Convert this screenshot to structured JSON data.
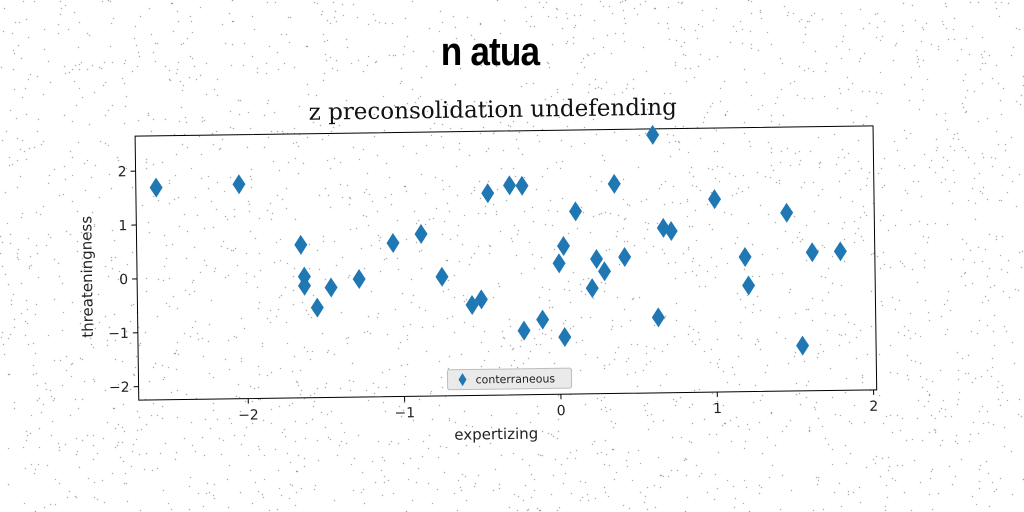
{
  "suptitle": "n atua",
  "chart_data": {
    "type": "scatter",
    "title": "z preconsolidation undefending",
    "xlabel": "expertizing",
    "ylabel": "threateningness",
    "xlim": [
      -2.7,
      2.02
    ],
    "ylim": [
      -2.25,
      2.65
    ],
    "xticks": [
      -2,
      -1,
      0,
      1,
      2
    ],
    "yticks": [
      -2,
      -1,
      0,
      1,
      2
    ],
    "grid": false,
    "legend_position": "bottom-center",
    "series": [
      {
        "name": "conterraneous",
        "color": "#1f77b4",
        "marker": "thin-diamond",
        "points": [
          [
            -2.57,
            1.69
          ],
          [
            -2.04,
            1.73
          ],
          [
            -1.65,
            0.59
          ],
          [
            -1.63,
            0.0
          ],
          [
            -1.63,
            -0.17
          ],
          [
            -1.55,
            -0.58
          ],
          [
            -1.46,
            -0.21
          ],
          [
            -1.28,
            -0.06
          ],
          [
            -1.06,
            0.6
          ],
          [
            -0.88,
            0.76
          ],
          [
            -0.75,
            -0.04
          ],
          [
            -0.56,
            -0.57
          ],
          [
            -0.5,
            -0.47
          ],
          [
            -0.45,
            1.5
          ],
          [
            -0.31,
            1.64
          ],
          [
            -0.23,
            1.63
          ],
          [
            -0.23,
            -1.06
          ],
          [
            -0.11,
            -0.86
          ],
          [
            0.0,
            0.18
          ],
          [
            0.03,
            0.5
          ],
          [
            0.03,
            -1.19
          ],
          [
            0.11,
            1.14
          ],
          [
            0.21,
            -0.29
          ],
          [
            0.24,
            0.25
          ],
          [
            0.29,
            0.02
          ],
          [
            0.36,
            1.64
          ],
          [
            0.42,
            0.28
          ],
          [
            0.61,
            2.54
          ],
          [
            0.63,
            -0.85
          ],
          [
            0.67,
            0.81
          ],
          [
            0.72,
            0.75
          ],
          [
            1.0,
            1.33
          ],
          [
            1.19,
            0.25
          ],
          [
            1.21,
            -0.28
          ],
          [
            1.46,
            1.06
          ],
          [
            1.55,
            -1.41
          ],
          [
            1.62,
            0.32
          ],
          [
            1.8,
            0.33
          ]
        ]
      }
    ]
  }
}
